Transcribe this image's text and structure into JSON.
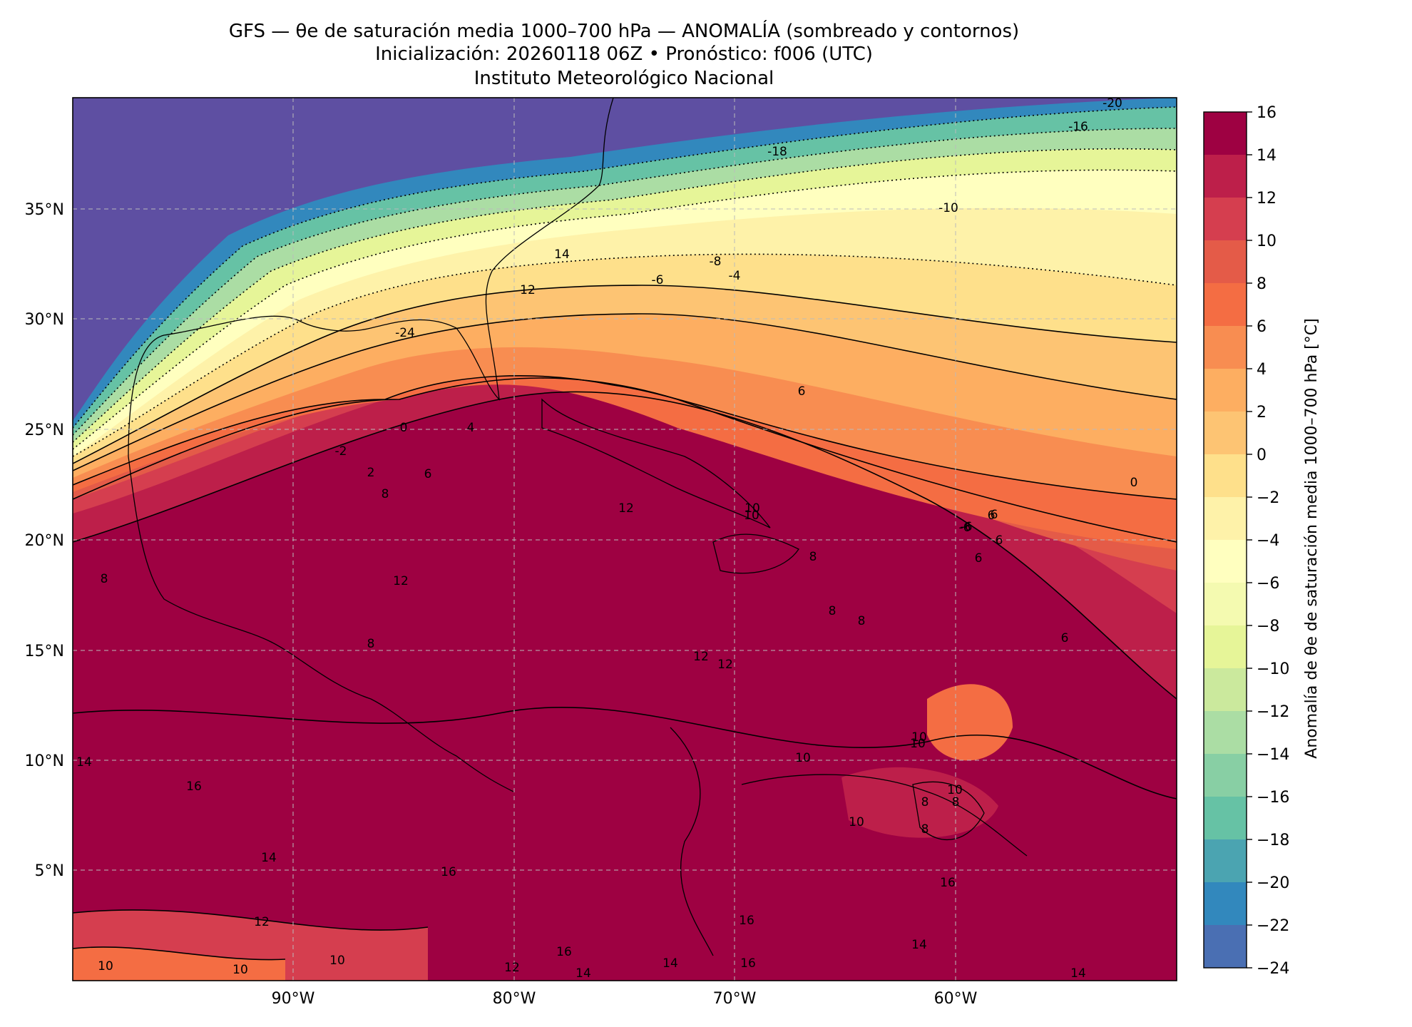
{
  "title": {
    "line1": "GFS — θe de saturación media 1000–700 hPa — ANOMALÍA (sombreado y contornos)",
    "line2": "Inicialización: 20260118 06Z   •   Pronóstico: f006 (UTC)",
    "line3": "Instituto Meteorológico Nacional"
  },
  "colorbar": {
    "label": "Anomalía de θe de saturación media 1000–700 hPa [°C]",
    "ticks": [
      "16",
      "14",
      "12",
      "10",
      "8",
      "6",
      "4",
      "2",
      "0",
      "−2",
      "−4",
      "−6",
      "−8",
      "−10",
      "−12",
      "−14",
      "−16",
      "−18",
      "−20",
      "−22",
      "−24"
    ],
    "colors": [
      "#9e0142",
      "#bd1f4a",
      "#d53e4f",
      "#e45b48",
      "#f46d43",
      "#f88d51",
      "#fdae61",
      "#fdc473",
      "#fee08b",
      "#fef2a9",
      "#ffffbf",
      "#f4fab0",
      "#e6f598",
      "#cbe99d",
      "#abdda4",
      "#88cfa4",
      "#66c2a5",
      "#4ba4b1",
      "#3288bd",
      "#4a6fb3",
      "#5e4fa2"
    ]
  },
  "axes": {
    "lat_labels": [
      "35°N",
      "30°N",
      "25°N",
      "20°N",
      "15°N",
      "10°N",
      "5°N"
    ],
    "lon_labels": [
      "90°W",
      "80°W",
      "70°W",
      "60°W"
    ]
  },
  "contour_labels": [
    "-20",
    "-16",
    "-18",
    "-10",
    "-8",
    "-6",
    "-4",
    "14",
    "12",
    "-24",
    "6",
    "0",
    "4",
    "-2",
    "2",
    "6",
    "8",
    "12",
    "10",
    "6",
    "8",
    "8",
    "-6",
    "6",
    "6",
    "0",
    "12",
    "10",
    "8",
    "8",
    "12",
    "12",
    "10",
    "10",
    "16",
    "14",
    "10",
    "14",
    "16",
    "12",
    "10",
    "10",
    "10",
    "8",
    "8",
    "8",
    "10",
    "16",
    "14",
    "16",
    "12",
    "16",
    "14",
    "14",
    "14",
    "16",
    "8",
    "10",
    "6",
    "6",
    "-6"
  ]
}
